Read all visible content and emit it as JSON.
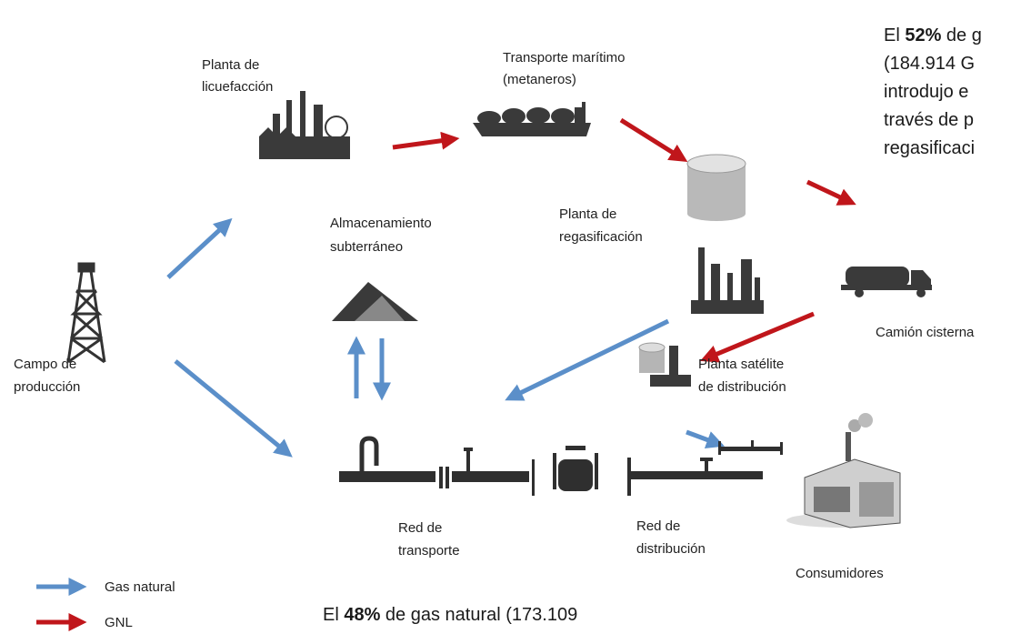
{
  "nodes": {
    "licuefaccion": [
      "Planta de",
      "licuefacción"
    ],
    "maritimo": [
      "Transporte marítimo",
      "(metaneros)"
    ],
    "regasificacion": [
      "Planta de",
      "regasificación"
    ],
    "almacenamiento": [
      "Almacenamiento",
      "subterráneo"
    ],
    "campo": [
      "Campo de",
      "producción"
    ],
    "camion": [
      "Camión cisterna"
    ],
    "satelite": [
      "Planta satélite",
      "de distribución"
    ],
    "red_transporte": [
      "Red de",
      "transporte"
    ],
    "red_distribucion": [
      "Red de",
      "distribución"
    ],
    "consumidores": [
      "Consumidores"
    ]
  },
  "legend": [
    "Gas natural",
    "GNL"
  ],
  "note_top": {
    "first": {
      "before": "El ",
      "bold": "52%",
      "after": " de g"
    },
    "lines": [
      "(184.914 G",
      "introdujo e",
      "través de p",
      "regasificaci"
    ]
  },
  "note_bottom": {
    "before": "El ",
    "bold": "48%",
    "after": " de gas natural (173.109"
  }
}
